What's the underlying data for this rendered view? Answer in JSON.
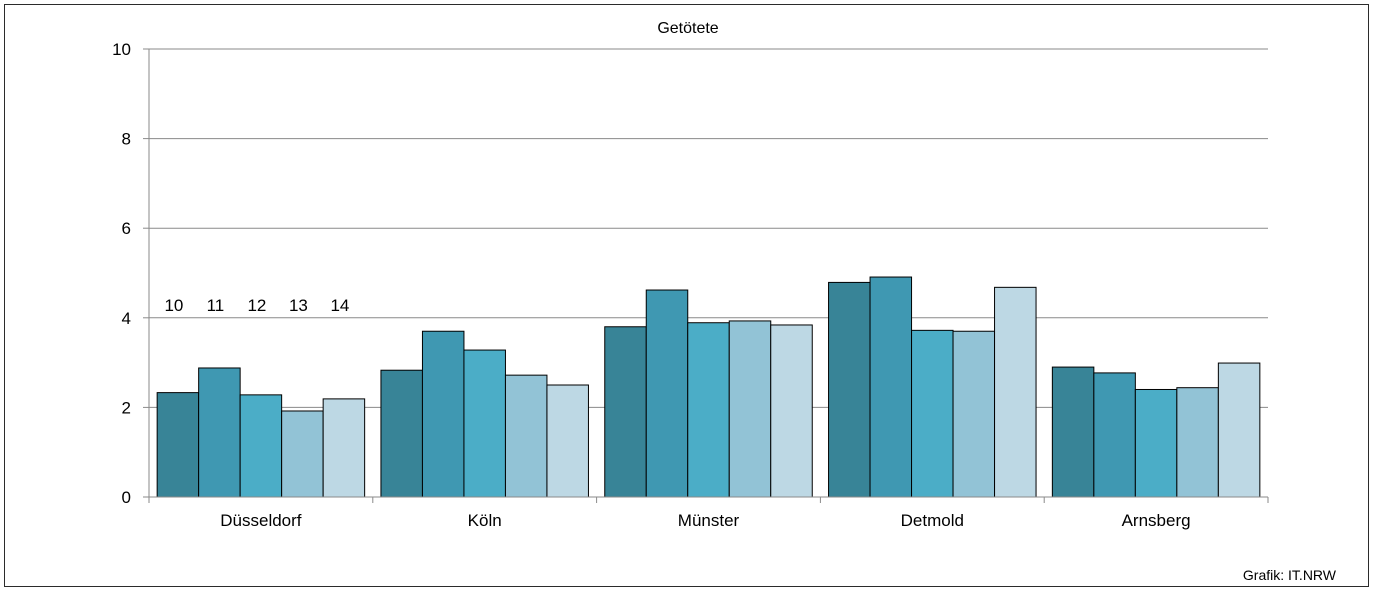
{
  "chart_data": {
    "type": "bar",
    "title": "Getötete",
    "credit": "Grafik: IT.NRW",
    "categories": [
      "Düsseldorf",
      "Köln",
      "Münster",
      "Detmold",
      "Arnsberg"
    ],
    "series": [
      {
        "name": "10",
        "color": "#388497",
        "values": [
          2.33,
          2.83,
          3.8,
          4.79,
          2.9
        ]
      },
      {
        "name": "11",
        "color": "#3f98b2",
        "values": [
          2.88,
          3.7,
          4.62,
          4.91,
          2.77
        ]
      },
      {
        "name": "12",
        "color": "#4badc7",
        "values": [
          2.28,
          3.28,
          3.89,
          3.72,
          2.4
        ]
      },
      {
        "name": "13",
        "color": "#92c3d6",
        "values": [
          1.92,
          2.72,
          3.93,
          3.7,
          2.44
        ]
      },
      {
        "name": "14",
        "color": "#bdd8e4",
        "values": [
          2.19,
          2.5,
          3.84,
          4.68,
          2.99
        ]
      }
    ],
    "ylim": [
      0,
      10
    ],
    "yticks": [
      "0",
      "2",
      "4",
      "6",
      "8",
      "10"
    ],
    "grid": true,
    "legend_placement": "inside-top-left"
  }
}
